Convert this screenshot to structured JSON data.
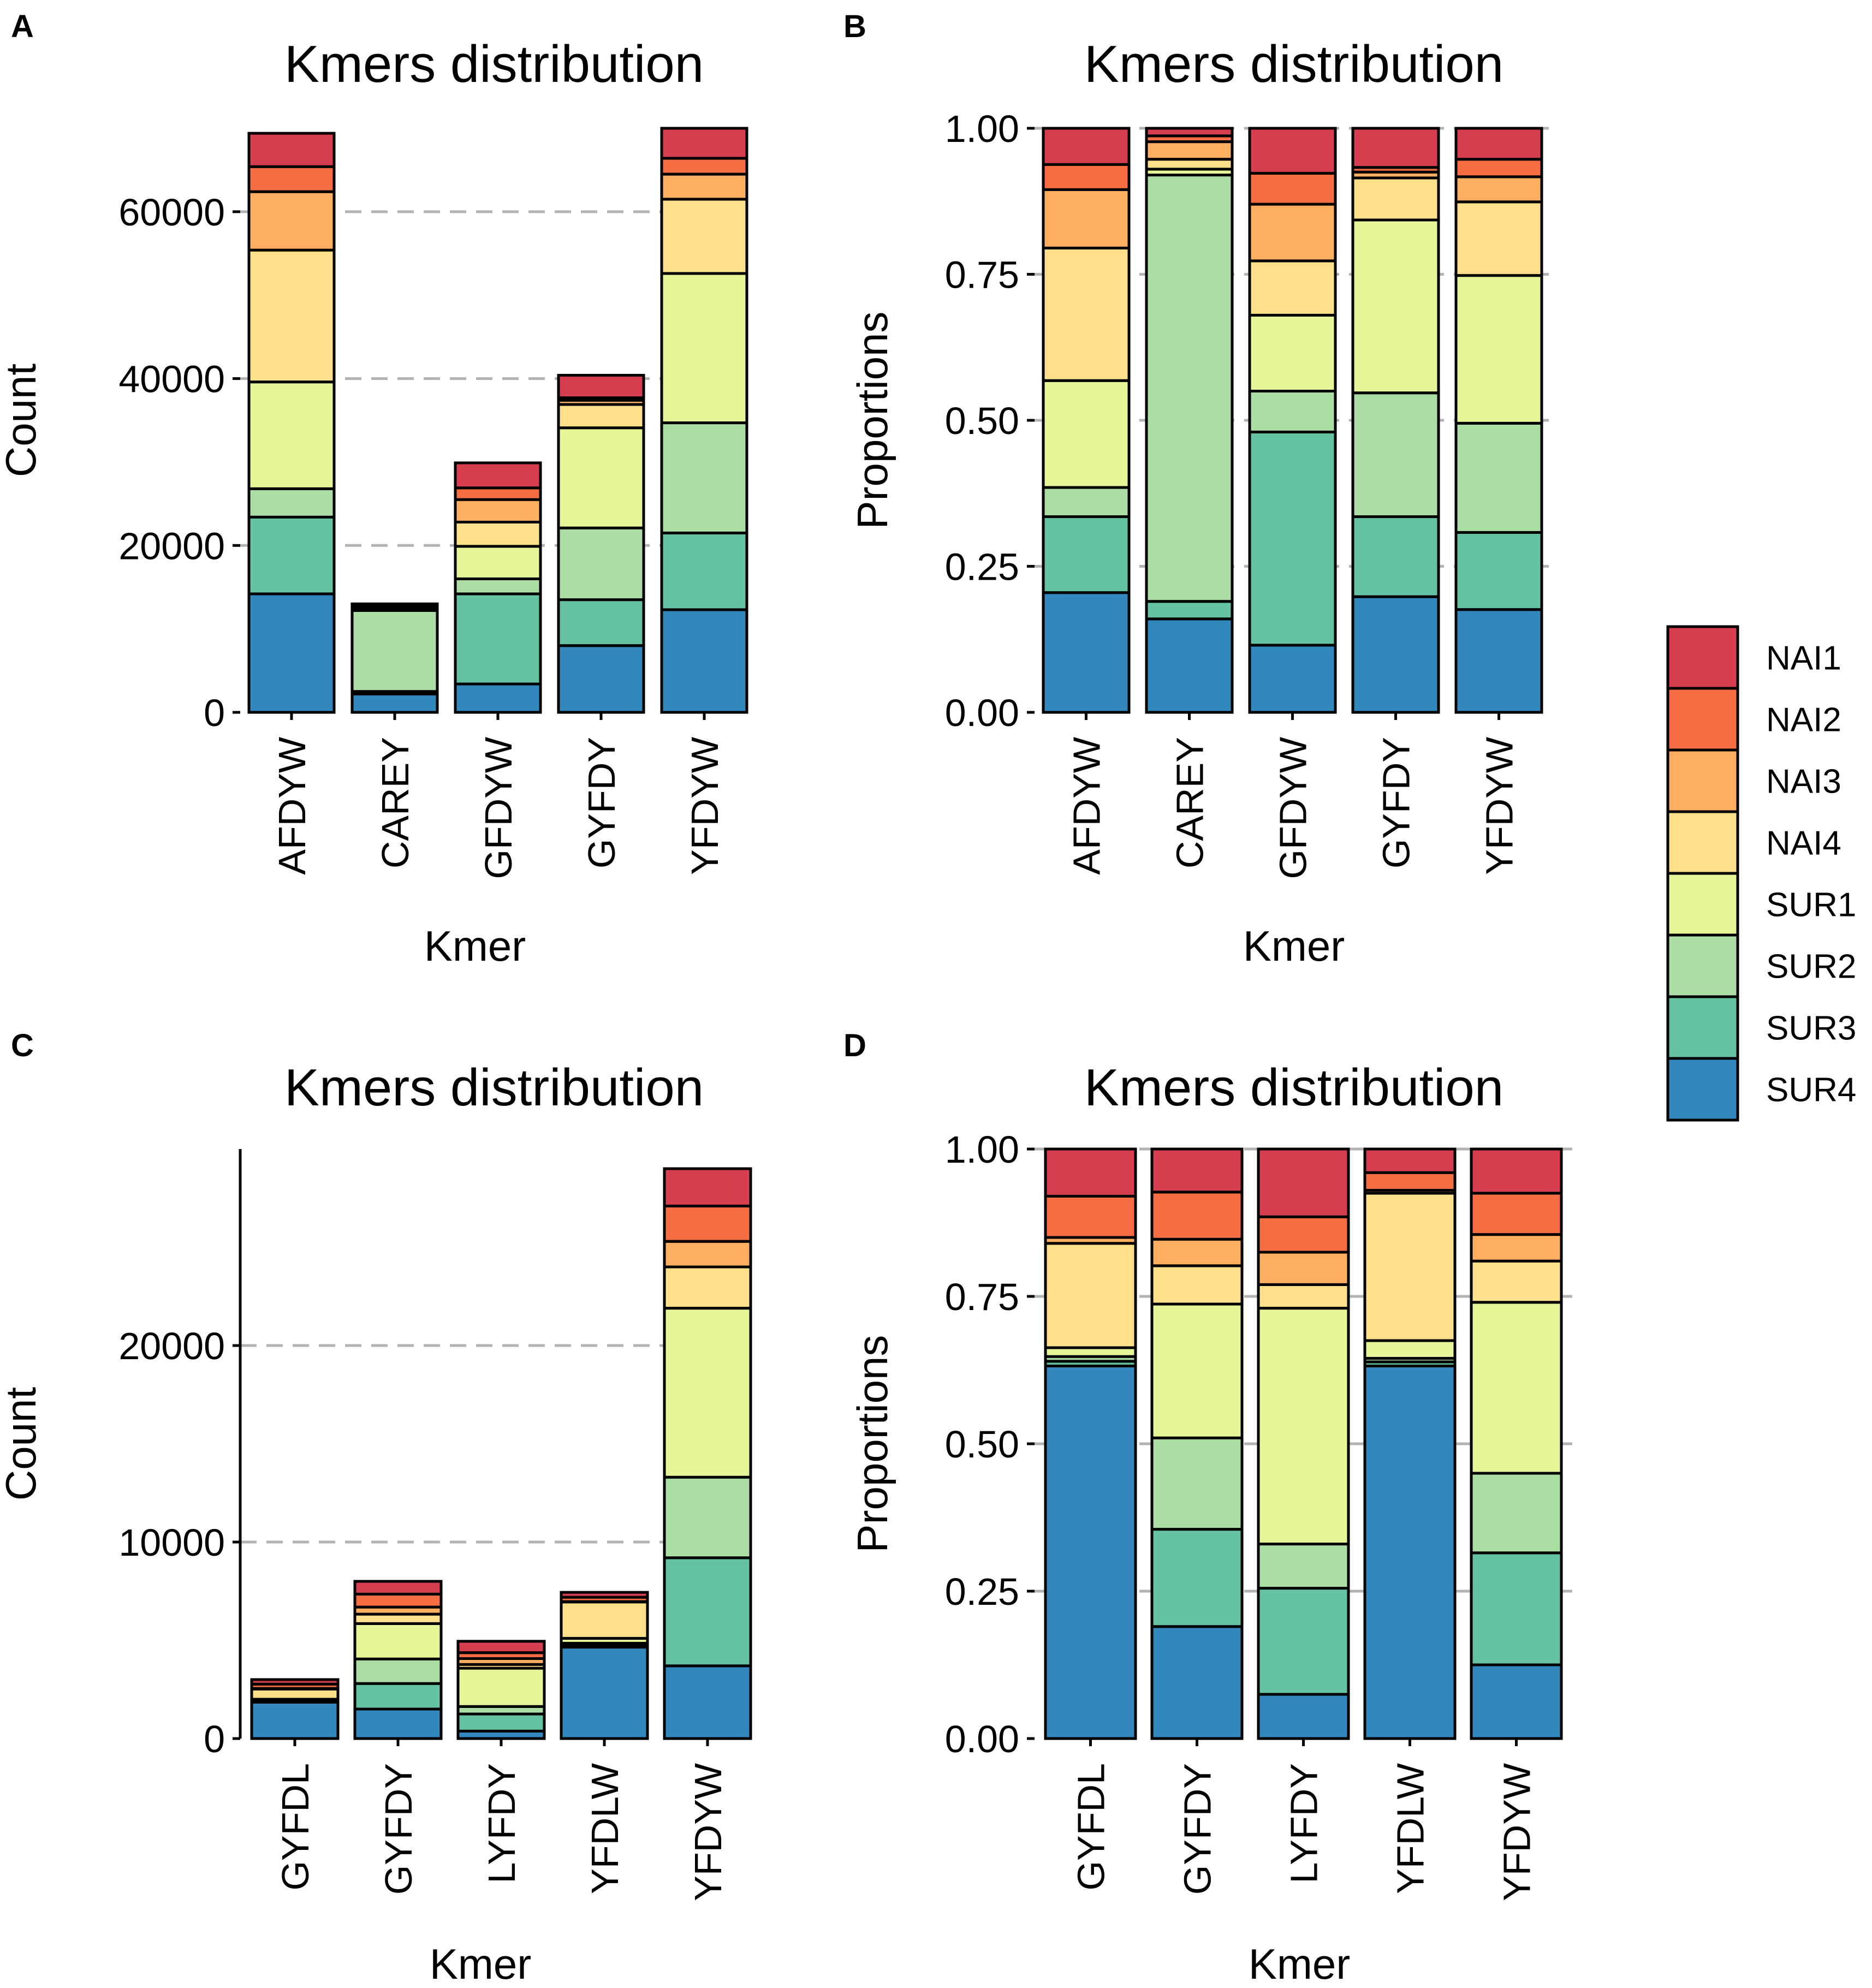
{
  "legend": {
    "groups": [
      "NAI1",
      "NAI2",
      "NAI3",
      "NAI4",
      "SUR1",
      "SUR2",
      "SUR3",
      "SUR4"
    ],
    "colors": [
      "#D53E4F",
      "#F46D43",
      "#FDAE61",
      "#FEE08B",
      "#E6F598",
      "#ABDDA4",
      "#66C2A5",
      "#3288BD"
    ]
  },
  "chart_data": [
    {
      "panel": "A",
      "type": "bar",
      "stacked": true,
      "title": "Kmers distribution",
      "xlabel": "Kmer",
      "ylabel": "Count",
      "ylim": [
        0,
        70000
      ],
      "yticks": [
        0,
        20000,
        40000,
        60000
      ],
      "ytick_labels": [
        "0",
        "20000",
        "40000",
        "60000"
      ],
      "grid": "horizontal dashed",
      "categories": [
        "AFDYW",
        "CAREY",
        "GFDYW",
        "GYFDY",
        "YFDYW"
      ],
      "series": [
        {
          "name": "SUR4",
          "values": [
            14200,
            2200,
            3400,
            8000,
            12300
          ]
        },
        {
          "name": "SUR3",
          "values": [
            9200,
            300,
            10800,
            5500,
            9200
          ]
        },
        {
          "name": "SUR2",
          "values": [
            3400,
            9700,
            1800,
            8600,
            13200
          ]
        },
        {
          "name": "SUR1",
          "values": [
            12800,
            100,
            3900,
            12000,
            17900
          ]
        },
        {
          "name": "NAI4",
          "values": [
            15800,
            200,
            2900,
            2800,
            8900
          ]
        },
        {
          "name": "NAI3",
          "values": [
            7000,
            300,
            2700,
            500,
            3000
          ]
        },
        {
          "name": "NAI2",
          "values": [
            3000,
            100,
            1400,
            300,
            1900
          ]
        },
        {
          "name": "NAI1",
          "values": [
            4000,
            100,
            3000,
            2700,
            3600
          ]
        }
      ]
    },
    {
      "panel": "B",
      "type": "bar",
      "stacked": true,
      "title": "Kmers distribution",
      "xlabel": "Kmer",
      "ylabel": "Proportions",
      "ylim": [
        0,
        1
      ],
      "yticks": [
        0,
        0.25,
        0.5,
        0.75,
        1
      ],
      "ytick_labels": [
        "0.00",
        "0.25",
        "0.50",
        "0.75",
        "1.00"
      ],
      "grid": "horizontal dashed",
      "categories": [
        "AFDYW",
        "CAREY",
        "GFDYW",
        "GYFDY",
        "YFDYW"
      ],
      "series": [
        {
          "name": "SUR4",
          "values": [
            0.205,
            0.16,
            0.115,
            0.198,
            0.176
          ]
        },
        {
          "name": "SUR3",
          "values": [
            0.13,
            0.03,
            0.365,
            0.137,
            0.132
          ]
        },
        {
          "name": "SUR2",
          "values": [
            0.05,
            0.73,
            0.07,
            0.212,
            0.187
          ]
        },
        {
          "name": "SUR1",
          "values": [
            0.183,
            0.01,
            0.13,
            0.296,
            0.253
          ]
        },
        {
          "name": "NAI4",
          "values": [
            0.227,
            0.017,
            0.093,
            0.072,
            0.126
          ]
        },
        {
          "name": "NAI3",
          "values": [
            0.1,
            0.03,
            0.097,
            0.01,
            0.043
          ]
        },
        {
          "name": "NAI2",
          "values": [
            0.043,
            0.01,
            0.053,
            0.008,
            0.03
          ]
        },
        {
          "name": "NAI1",
          "values": [
            0.062,
            0.013,
            0.077,
            0.067,
            0.053
          ]
        }
      ]
    },
    {
      "panel": "C",
      "type": "bar",
      "stacked": true,
      "title": "Kmers distribution",
      "xlabel": "Kmer",
      "ylabel": "Count",
      "ylim": [
        0,
        30000
      ],
      "yticks": [
        0,
        10000,
        20000
      ],
      "ytick_labels": [
        "0",
        "10000",
        "20000"
      ],
      "grid": "horizontal dashed",
      "categories": [
        "GYFDL",
        "GYFDY",
        "LYFDY",
        "YFDLW",
        "YFDYW"
      ],
      "series": [
        {
          "name": "SUR4",
          "values": [
            1850,
            1500,
            380,
            4650,
            3700
          ]
        },
        {
          "name": "SUR3",
          "values": [
            50,
            1300,
            870,
            100,
            5500
          ]
        },
        {
          "name": "SUR2",
          "values": [
            50,
            1250,
            380,
            100,
            4100
          ]
        },
        {
          "name": "SUR1",
          "values": [
            50,
            1800,
            1950,
            250,
            8600
          ]
        },
        {
          "name": "NAI4",
          "values": [
            520,
            480,
            190,
            1850,
            2100
          ]
        },
        {
          "name": "NAI3",
          "values": [
            30,
            360,
            300,
            20,
            1300
          ]
        },
        {
          "name": "NAI2",
          "values": [
            220,
            660,
            300,
            220,
            1800
          ]
        },
        {
          "name": "NAI1",
          "values": [
            230,
            650,
            580,
            250,
            1900
          ]
        }
      ]
    },
    {
      "panel": "D",
      "type": "bar",
      "stacked": true,
      "title": "Kmers distribution",
      "xlabel": "Kmer",
      "ylabel": "Proportions",
      "ylim": [
        0,
        1
      ],
      "yticks": [
        0,
        0.25,
        0.5,
        0.75,
        1
      ],
      "ytick_labels": [
        "0.00",
        "0.25",
        "0.50",
        "0.75",
        "1.00"
      ],
      "grid": "horizontal dashed",
      "categories": [
        "GYFDL",
        "GYFDY",
        "LYFDY",
        "YFDLW",
        "YFDYW"
      ],
      "series": [
        {
          "name": "SUR4",
          "values": [
            0.632,
            0.19,
            0.075,
            0.632,
            0.125
          ]
        },
        {
          "name": "SUR3",
          "values": [
            0.008,
            0.165,
            0.18,
            0.007,
            0.19
          ]
        },
        {
          "name": "SUR2",
          "values": [
            0.008,
            0.155,
            0.075,
            0.006,
            0.135
          ]
        },
        {
          "name": "SUR1",
          "values": [
            0.015,
            0.227,
            0.4,
            0.03,
            0.29
          ]
        },
        {
          "name": "NAI4",
          "values": [
            0.177,
            0.065,
            0.04,
            0.25,
            0.07
          ]
        },
        {
          "name": "NAI3",
          "values": [
            0.01,
            0.045,
            0.055,
            0.005,
            0.045
          ]
        },
        {
          "name": "NAI2",
          "values": [
            0.07,
            0.08,
            0.06,
            0.03,
            0.07
          ]
        },
        {
          "name": "NAI1",
          "values": [
            0.08,
            0.073,
            0.115,
            0.04,
            0.075
          ]
        }
      ]
    }
  ]
}
